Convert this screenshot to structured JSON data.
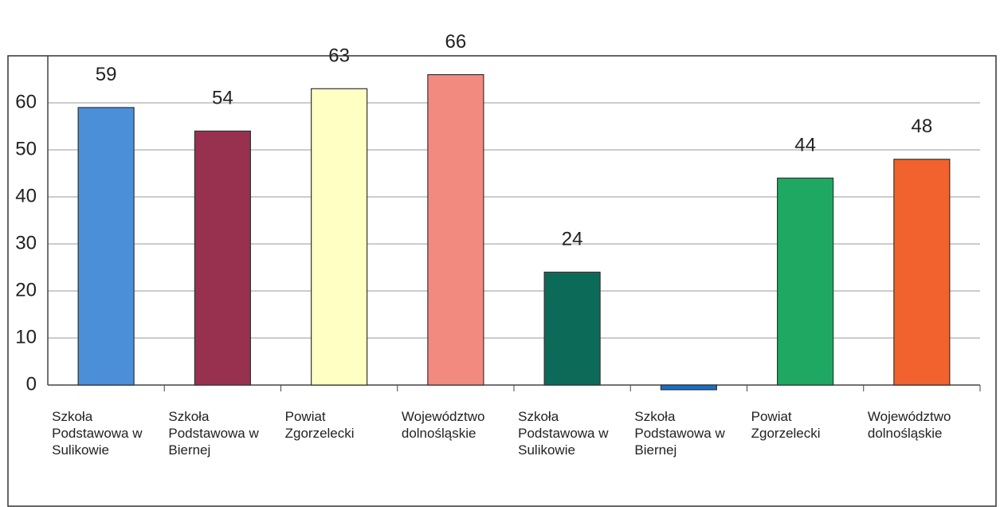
{
  "chart_data": {
    "type": "bar",
    "categories": [
      "Szkoła Podstawowa w Sulikowie",
      "Szkoła Podstawowa w Biernej",
      "Powiat Zgorzelecki",
      "Województwo dolnośląskie",
      "Szkoła Podstawowa w Sulikowie",
      "Szkoła Podstawowa w Biernej",
      "Powiat Zgorzelecki",
      "Województwo dolnośląskie"
    ],
    "values": [
      59,
      54,
      63,
      66,
      24,
      -1,
      44,
      48
    ],
    "value_labels": [
      "59",
      "54",
      "63",
      "66",
      "24",
      null,
      "44",
      "48"
    ],
    "colors": [
      "#4a8fd8",
      "#983050",
      "#ffffc4",
      "#f38a80",
      "#0b6b58",
      "#1b6ec2",
      "#1ea862",
      "#f2622e"
    ],
    "ylim": [
      0,
      70
    ],
    "yticks": [
      0,
      10,
      20,
      30,
      40,
      50,
      60
    ],
    "grid": true
  }
}
